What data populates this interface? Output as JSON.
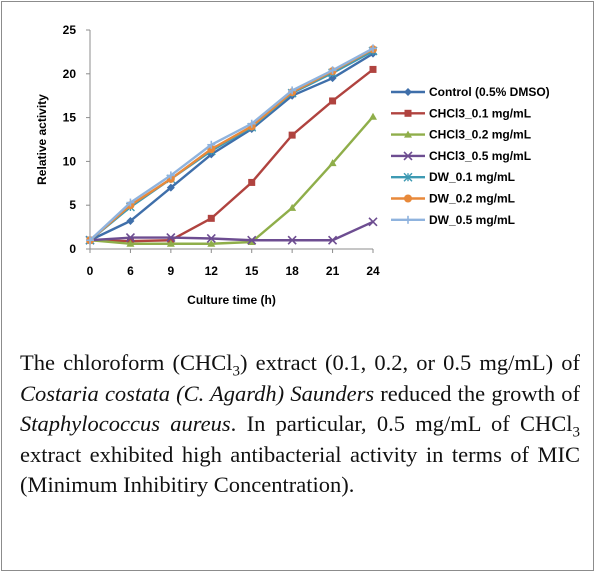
{
  "chart_data": {
    "type": "line",
    "title": "",
    "xlabel": "Culture time (h)",
    "ylabel": "Relative activity",
    "x": [
      0,
      6,
      9,
      12,
      15,
      18,
      21,
      24
    ],
    "xlim": [
      0,
      24
    ],
    "ylim": [
      0,
      25
    ],
    "yticks": [
      0,
      5,
      10,
      15,
      20,
      25
    ],
    "grid": false,
    "legend_position": "right",
    "series": [
      {
        "name": "Control (0.5% DMSO)",
        "color": "#3f6faa",
        "marker": "diamond",
        "values": [
          1.0,
          3.2,
          7.0,
          10.8,
          13.7,
          17.5,
          19.5,
          22.3
        ]
      },
      {
        "name": "CHCl3_0.1 mg/mL",
        "color": "#b0433f",
        "marker": "square",
        "values": [
          1.0,
          0.9,
          1.0,
          3.5,
          7.6,
          13.0,
          16.9,
          20.5
        ]
      },
      {
        "name": "CHCl3_0.2 mg/mL",
        "color": "#8fae4a",
        "marker": "triangle",
        "values": [
          1.0,
          0.6,
          0.6,
          0.6,
          0.8,
          4.7,
          9.8,
          15.1
        ]
      },
      {
        "name": "CHCl3_0.5 mg/mL",
        "color": "#6d4d91",
        "marker": "x",
        "values": [
          1.0,
          1.3,
          1.3,
          1.2,
          1.0,
          1.0,
          1.0,
          3.1
        ]
      },
      {
        "name": "DW_0.1 mg/mL",
        "color": "#3e9ab3",
        "marker": "star",
        "values": [
          1.0,
          4.8,
          8.0,
          11.2,
          13.9,
          17.8,
          20.1,
          22.6
        ]
      },
      {
        "name": "DW_0.2 mg/mL",
        "color": "#e8893a",
        "marker": "circle",
        "values": [
          1.0,
          5.0,
          8.0,
          11.4,
          14.0,
          17.9,
          20.3,
          22.8
        ]
      },
      {
        "name": "DW_0.5 mg/mL",
        "color": "#8fb3de",
        "marker": "plus",
        "values": [
          1.0,
          5.3,
          8.4,
          11.9,
          14.3,
          18.1,
          20.4,
          22.9
        ]
      }
    ]
  },
  "caption": {
    "p1": "The chloroform (CHCl",
    "sub1": "3",
    "p2": ") extract (0.1, 0.2, or 0.5 mg/mL) of ",
    "i1": "Costaria costata (C. Agardh) Saunders",
    "p3": " reduced the growth of ",
    "i2": "Staphylococcus aureus",
    "p4": ". In particular, 0.5 mg/mL of CHCl",
    "sub2": "3",
    "p5": " extract exhibited high antibacterial activity in terms of MIC (Minimum Inhibitiry Concentration)."
  }
}
